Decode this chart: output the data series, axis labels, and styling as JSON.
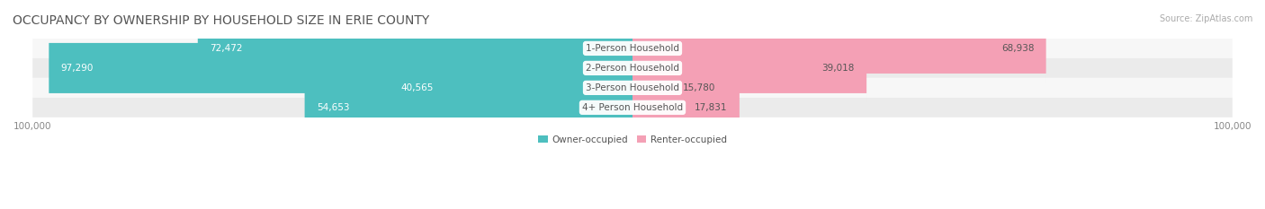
{
  "title": "OCCUPANCY BY OWNERSHIP BY HOUSEHOLD SIZE IN ERIE COUNTY",
  "source": "Source: ZipAtlas.com",
  "categories": [
    "1-Person Household",
    "2-Person Household",
    "3-Person Household",
    "4+ Person Household"
  ],
  "owner_values": [
    72472,
    97290,
    40565,
    54653
  ],
  "renter_values": [
    68938,
    39018,
    15780,
    17831
  ],
  "owner_color": "#4dbfbf",
  "renter_color": "#f4a0b5",
  "bar_bg_color": "#f0f0f0",
  "label_bg_color": "#ffffff",
  "axis_max": 100000,
  "bar_height": 0.55,
  "title_fontsize": 10,
  "source_fontsize": 7,
  "tick_fontsize": 7.5,
  "value_fontsize": 7.5,
  "category_fontsize": 7.5,
  "legend_fontsize": 7.5,
  "row_bg_colors": [
    "#f7f7f7",
    "#ebebeb",
    "#f7f7f7",
    "#ebebeb"
  ]
}
